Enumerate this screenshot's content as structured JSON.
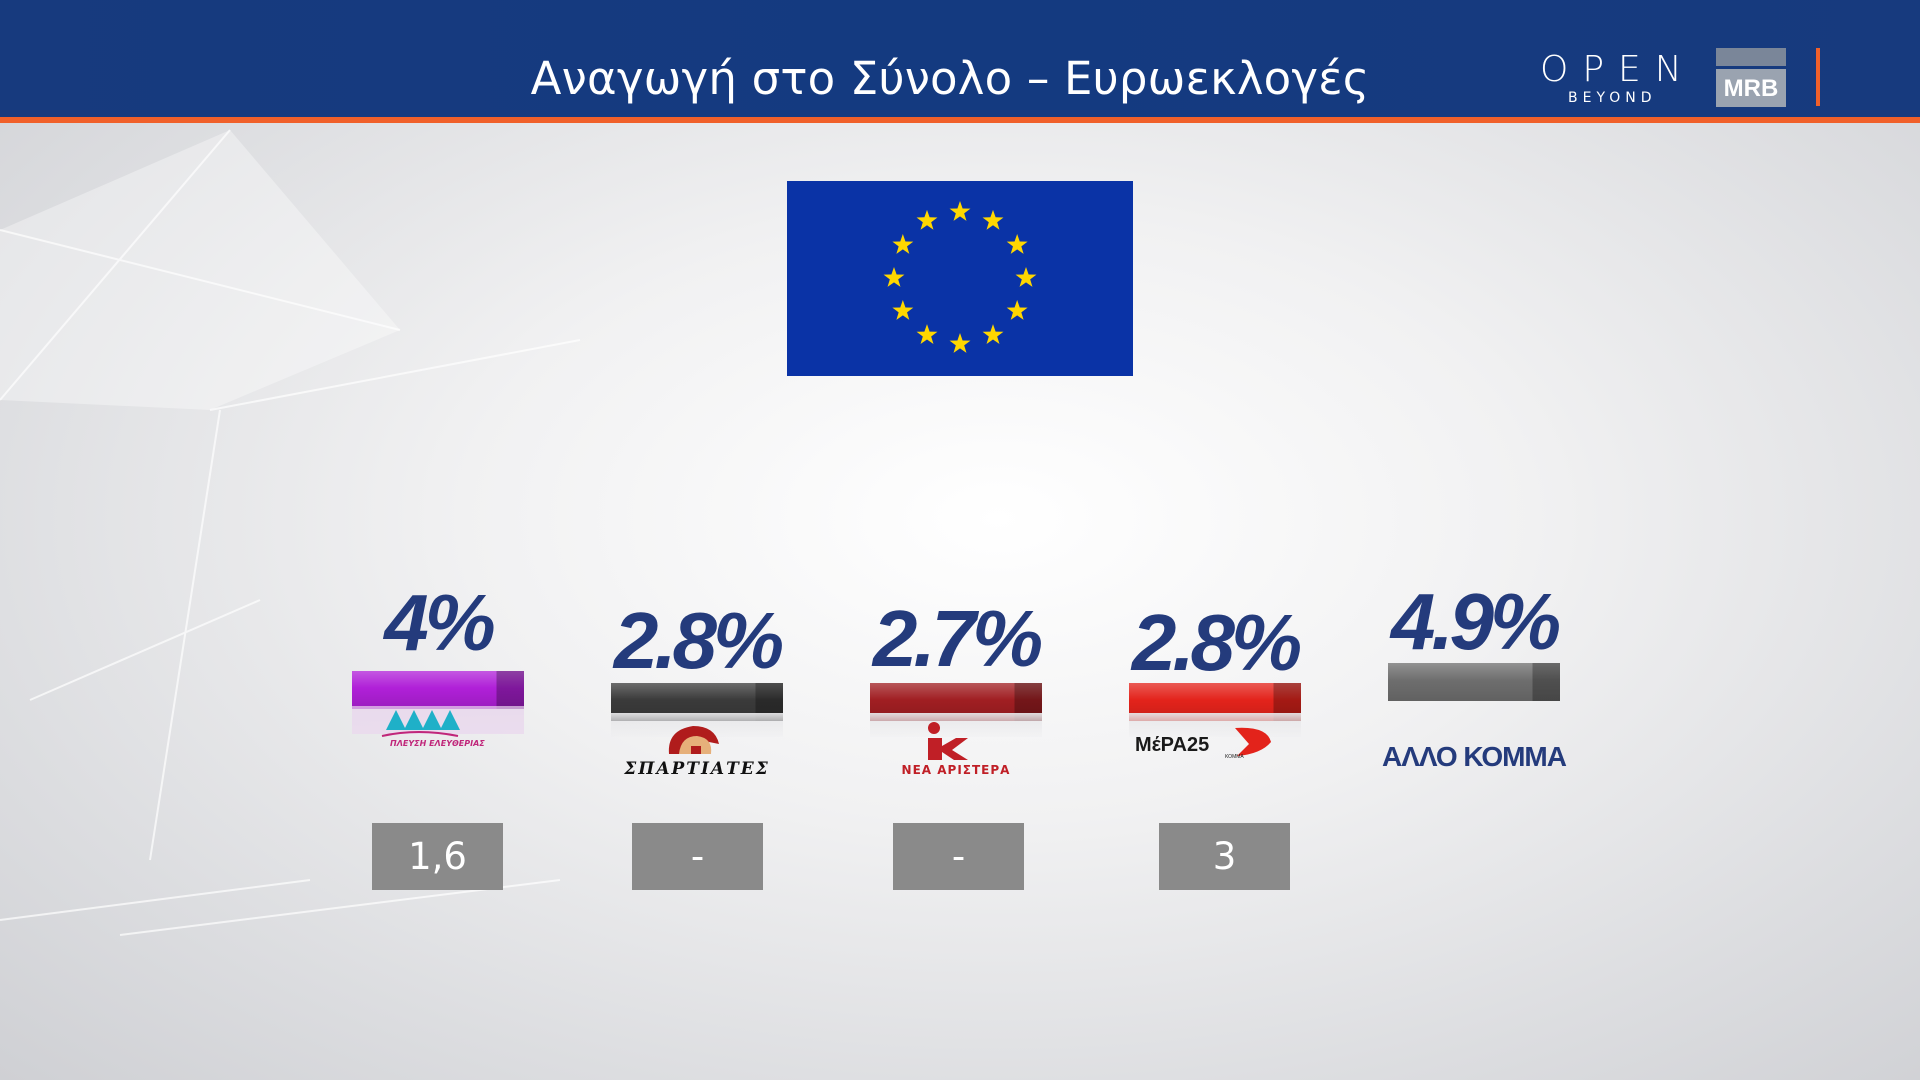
{
  "header": {
    "title": "Αναγωγή στο Σύνολο – Ευρωεκλογές",
    "brand_open": "OPEN",
    "brand_open_sub": "BEYOND",
    "brand_pollster": "MRB"
  },
  "colors": {
    "header_bg": "#173a7e",
    "accent_orange": "#f0602a",
    "value_text": "#243b7c",
    "prev_box": "#8a8a8a",
    "eu_blue": "#0a33a6",
    "eu_star": "#ffd700"
  },
  "chart_data": {
    "type": "bar",
    "categories": [
      "ΠΛΕΥΣΗ ΕΛΕΥΘΕΡΙΑΣ",
      "ΣΠΑΡΤΙΑΤΕΣ",
      "ΝΕΑ ΑΡΙΣΤΕΡΑ",
      "ΜέΡΑ25",
      "ΑΛΛΟ ΚΟΜΜΑ"
    ],
    "values": [
      4.0,
      2.8,
      2.7,
      2.8,
      4.9
    ],
    "value_labels": [
      "4%",
      "2.8%",
      "2.7%",
      "2.8%",
      "4.9%"
    ],
    "previous_labels": [
      "1,6",
      "-",
      "-",
      "3",
      ""
    ],
    "bar_colors": [
      "#b020d8",
      "#3a3a3a",
      "#a01e22",
      "#e3231b",
      "#6e6e6e"
    ],
    "party_logo_texts": [
      "ΠΛΕΥΣΗ ΕΛΕΥΘΕΡΙΑΣ",
      "ΣΠΑΡΤΙΑΤΕΣ",
      "ΝΕΑ ΑΡΙΣΤΕΡΑ",
      "ΜέΡΑ25",
      "ΑΛΛΟ ΚΟΜΜΑ"
    ],
    "party_logo_subtexts": [
      "",
      "",
      "",
      "ΚΟΜΜΑ",
      ""
    ],
    "title": "Αναγωγή στο Σύνολο – Ευρωεκλογές",
    "xlabel": "",
    "ylabel": "",
    "grid": false
  }
}
